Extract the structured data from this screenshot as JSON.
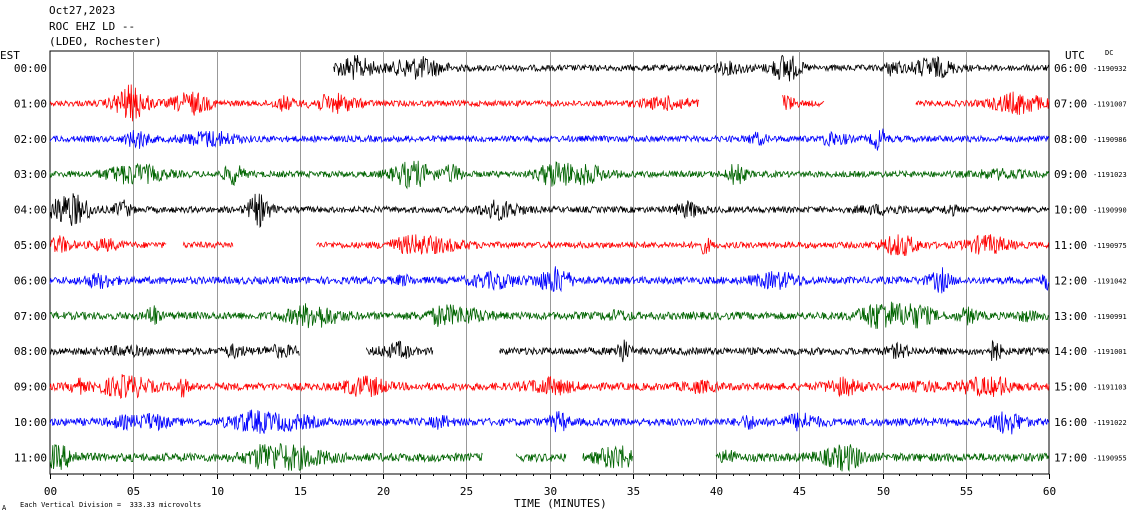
{
  "header": {
    "date": "Oct27,2023",
    "station": "ROC EHZ LD --",
    "network": "(LDEO, Rochester)"
  },
  "axis": {
    "left_title": "EST",
    "right_title": "UTC",
    "dc_label": "DC",
    "x_title": "TIME (MINUTES)",
    "footer": "Each Vertical Division =  333.33 microvolts",
    "footer_mark": "A"
  },
  "chart_data": {
    "type": "line",
    "title": "ROC EHZ LD --",
    "xlabel": "TIME (MINUTES)",
    "ylabel": "",
    "xlim": [
      0,
      60
    ],
    "xticks": [
      "00",
      "05",
      "10",
      "15",
      "20",
      "25",
      "30",
      "35",
      "40",
      "45",
      "50",
      "55",
      "60"
    ],
    "grid": true,
    "colors": [
      "#000000",
      "#ff0000",
      "#0000ff",
      "#006400"
    ],
    "rows": [
      {
        "est": "00:00",
        "utc": "06:00",
        "dc": "-1190932",
        "segments": [
          [
            17,
            60
          ]
        ],
        "amp": 0.45
      },
      {
        "est": "01:00",
        "utc": "07:00",
        "dc": "-1191007",
        "segments": [
          [
            0,
            39
          ],
          [
            44,
            46.5
          ],
          [
            52,
            60
          ]
        ],
        "amp": 0.4
      },
      {
        "est": "02:00",
        "utc": "08:00",
        "dc": "-1190986",
        "segments": [
          [
            0,
            60
          ]
        ],
        "amp": 0.45
      },
      {
        "est": "03:00",
        "utc": "09:00",
        "dc": "-1191023",
        "segments": [
          [
            0,
            60
          ]
        ],
        "amp": 0.45
      },
      {
        "est": "04:00",
        "utc": "10:00",
        "dc": "-1190990",
        "segments": [
          [
            0,
            60
          ]
        ],
        "amp": 0.45
      },
      {
        "est": "05:00",
        "utc": "11:00",
        "dc": "-1190975",
        "segments": [
          [
            0,
            7
          ],
          [
            8,
            11
          ],
          [
            16,
            60
          ]
        ],
        "amp": 0.45
      },
      {
        "est": "06:00",
        "utc": "12:00",
        "dc": "-1191042",
        "segments": [
          [
            0,
            60
          ]
        ],
        "amp": 0.6
      },
      {
        "est": "07:00",
        "utc": "13:00",
        "dc": "-1190991",
        "segments": [
          [
            0,
            60
          ]
        ],
        "amp": 0.65
      },
      {
        "est": "08:00",
        "utc": "14:00",
        "dc": "-1191001",
        "segments": [
          [
            0,
            15
          ],
          [
            19,
            23
          ],
          [
            27,
            60
          ]
        ],
        "amp": 0.6
      },
      {
        "est": "09:00",
        "utc": "15:00",
        "dc": "-1191103",
        "segments": [
          [
            0,
            60
          ]
        ],
        "amp": 0.65
      },
      {
        "est": "10:00",
        "utc": "16:00",
        "dc": "-1191022",
        "segments": [
          [
            0,
            60
          ]
        ],
        "amp": 0.65
      },
      {
        "est": "11:00",
        "utc": "17:00",
        "dc": "-1190955",
        "segments": [
          [
            0,
            26
          ],
          [
            28,
            31
          ],
          [
            32,
            35
          ],
          [
            40,
            60
          ]
        ],
        "amp": 0.75
      }
    ]
  }
}
